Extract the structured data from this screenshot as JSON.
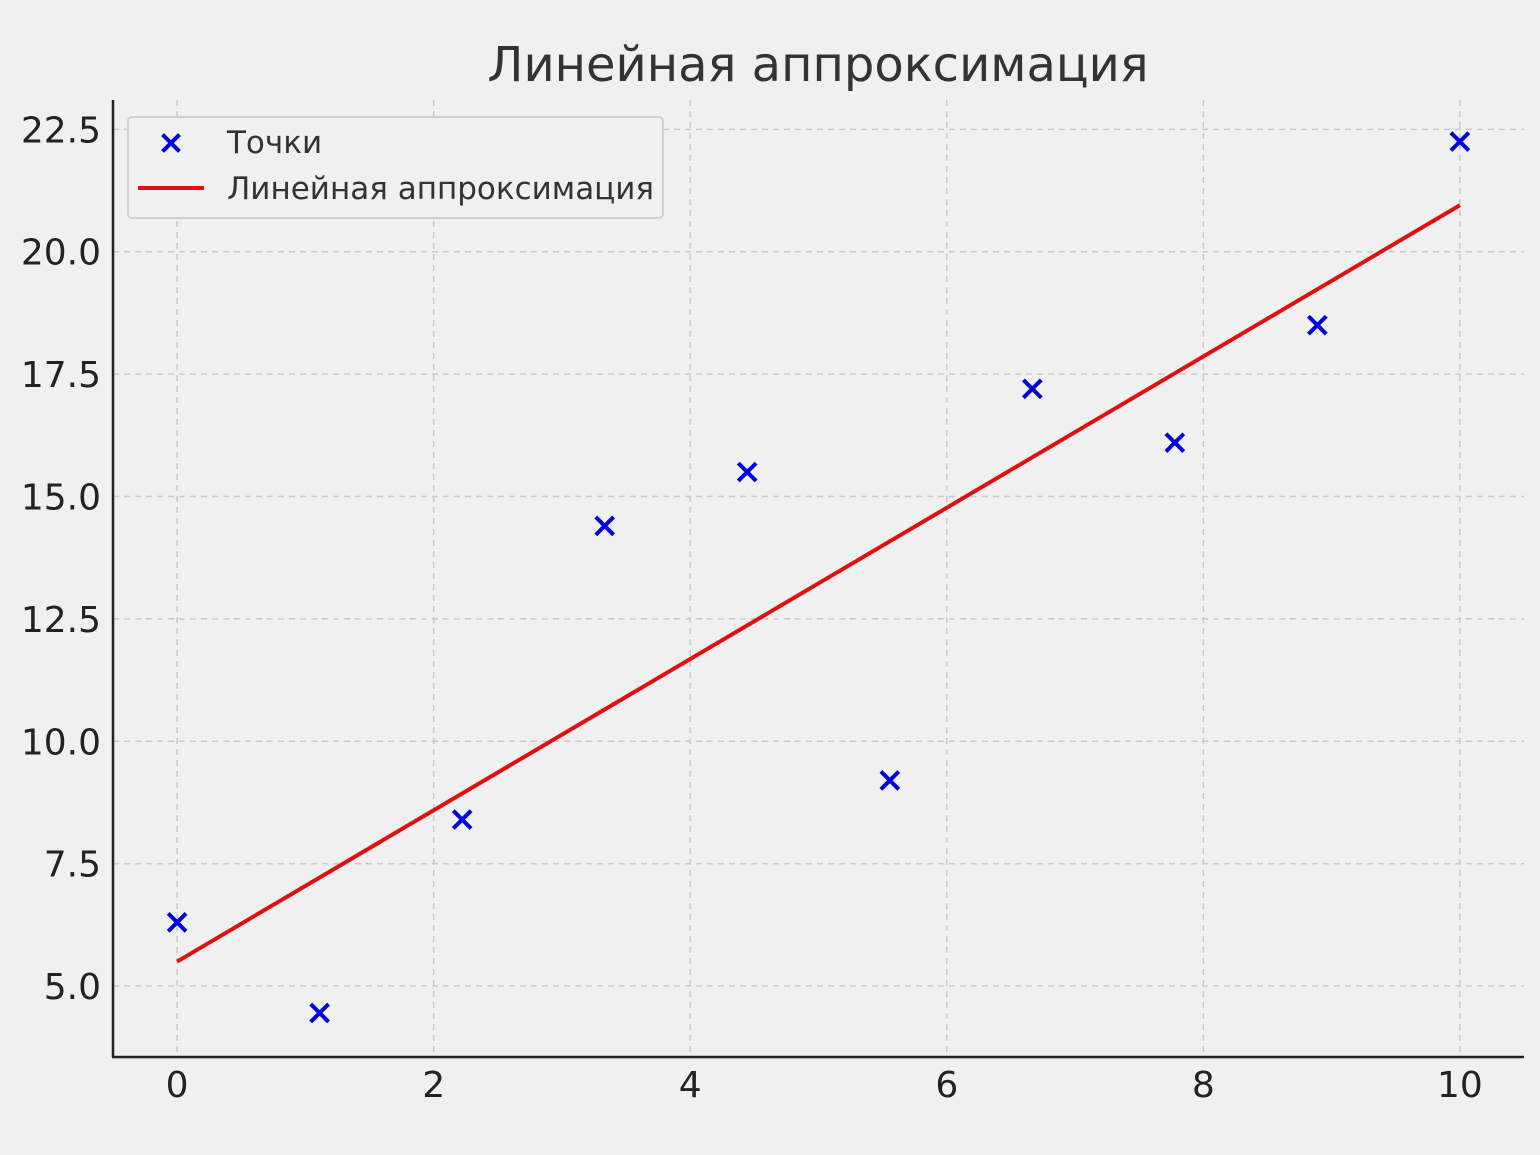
{
  "chart_data": {
    "type": "scatter",
    "title": "Линейная аппроксимация",
    "xlabel": "",
    "ylabel": "",
    "xlim": [
      -0.5,
      10.5
    ],
    "ylim": [
      3.55,
      23.1
    ],
    "x_ticks": [
      "0",
      "2",
      "4",
      "6",
      "8",
      "10"
    ],
    "y_ticks": [
      "5.0",
      "7.5",
      "10.0",
      "12.5",
      "15.0",
      "17.5",
      "20.0",
      "22.5"
    ],
    "grid": true,
    "legend_position": "top-left",
    "series": [
      {
        "name": "Точки",
        "kind": "scatter",
        "marker": "x",
        "color": "#0000dd",
        "x": [
          0.0,
          1.111,
          2.222,
          3.333,
          4.444,
          5.556,
          6.667,
          7.778,
          8.889,
          10.0
        ],
        "y": [
          6.3,
          4.45,
          8.4,
          14.4,
          15.5,
          9.2,
          17.2,
          16.1,
          18.5,
          22.25
        ]
      },
      {
        "name": "Линейная аппроксимация",
        "kind": "line",
        "color": "#dd1111",
        "x": [
          0.0,
          10.0
        ],
        "y": [
          5.5,
          20.95
        ]
      }
    ]
  }
}
